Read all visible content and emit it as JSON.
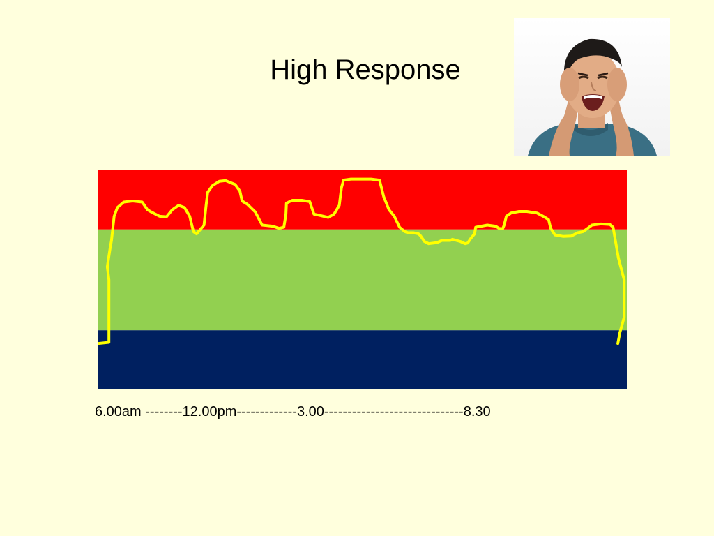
{
  "title": "High Response",
  "time_axis_label": "6.00am --------12.00pm-------------3.00------------------------------8.30",
  "photo": {
    "icon": "boy-covering-ears-photo"
  },
  "colors": {
    "background": "#FFFFDD",
    "band_high": "#FF0000",
    "band_middle": "#92D050",
    "band_low": "#002060",
    "trace": "#FFFF00"
  },
  "chart_data": {
    "type": "line",
    "title": "High Response",
    "xlabel": "6.00am --------12.00pm-------------3.00------------------------------8.30",
    "ylabel": "",
    "grid": false,
    "xlim": [
      0,
      100
    ],
    "ylim": [
      0,
      100
    ],
    "bands": [
      {
        "from": 73,
        "to": 100,
        "color": "#FF0000"
      },
      {
        "from": 27,
        "to": 73,
        "color": "#92D050"
      },
      {
        "from": 0,
        "to": 27,
        "color": "#002060"
      }
    ],
    "series": [
      {
        "color": "#FFFF00",
        "points": [
          [
            0,
            21
          ],
          [
            2,
            21.5
          ],
          [
            2,
            50
          ],
          [
            1.7,
            56
          ],
          [
            2.2,
            64
          ],
          [
            2.5,
            68
          ],
          [
            3,
            79
          ],
          [
            3.6,
            83
          ],
          [
            4.8,
            85.5
          ],
          [
            6.5,
            86
          ],
          [
            8.3,
            85.5
          ],
          [
            9.3,
            82
          ],
          [
            10,
            81
          ],
          [
            11.6,
            79
          ],
          [
            12.9,
            78.8
          ],
          [
            14,
            82
          ],
          [
            15.2,
            84
          ],
          [
            16.3,
            83
          ],
          [
            17.3,
            79
          ],
          [
            18,
            72
          ],
          [
            18.6,
            71
          ],
          [
            19.3,
            73
          ],
          [
            20,
            75
          ],
          [
            20.4,
            84
          ],
          [
            20.7,
            90
          ],
          [
            21.6,
            93
          ],
          [
            22.9,
            95
          ],
          [
            24.1,
            95.3
          ],
          [
            25.9,
            93.5
          ],
          [
            26.8,
            90.5
          ],
          [
            27.2,
            86
          ],
          [
            28.2,
            84.5
          ],
          [
            29.7,
            81
          ],
          [
            31,
            75
          ],
          [
            33,
            74.5
          ],
          [
            34.2,
            73.5
          ],
          [
            35.1,
            74
          ],
          [
            35.5,
            80
          ],
          [
            35.6,
            85
          ],
          [
            36.7,
            86.3
          ],
          [
            38.5,
            86.3
          ],
          [
            40,
            85.7
          ],
          [
            40.8,
            80
          ],
          [
            41.8,
            79.5
          ],
          [
            43.5,
            78.5
          ],
          [
            44.6,
            80
          ],
          [
            45.6,
            84
          ],
          [
            46,
            92
          ],
          [
            46.4,
            95.5
          ],
          [
            47.8,
            96
          ],
          [
            51.6,
            96
          ],
          [
            53.2,
            95.5
          ],
          [
            54,
            88
          ],
          [
            55,
            82
          ],
          [
            56,
            79
          ],
          [
            57,
            74
          ],
          [
            58,
            72
          ],
          [
            58.6,
            71.5
          ],
          [
            59.6,
            71.5
          ],
          [
            60.6,
            71
          ],
          [
            61,
            70
          ],
          [
            61.7,
            67.5
          ],
          [
            62.5,
            66.5
          ],
          [
            64.1,
            67
          ],
          [
            65,
            68
          ],
          [
            66.6,
            68
          ],
          [
            67,
            68.5
          ],
          [
            68.5,
            67.5
          ],
          [
            69.4,
            66.5
          ],
          [
            69.9,
            66.8
          ],
          [
            70.5,
            69
          ],
          [
            71.2,
            71
          ],
          [
            71.4,
            74
          ],
          [
            73.6,
            75
          ],
          [
            75.2,
            74.5
          ],
          [
            75.8,
            73.5
          ],
          [
            76.5,
            73.3
          ],
          [
            76.8,
            75
          ],
          [
            77.2,
            79
          ],
          [
            78.1,
            80.5
          ],
          [
            79.6,
            81.2
          ],
          [
            81.1,
            81.2
          ],
          [
            83,
            80.5
          ],
          [
            84.4,
            78.7
          ],
          [
            85.2,
            77.5
          ],
          [
            85.6,
            73.5
          ],
          [
            86.4,
            70.5
          ],
          [
            88,
            69.8
          ],
          [
            89.5,
            70
          ],
          [
            90.7,
            71.5
          ],
          [
            91.7,
            72
          ],
          [
            92.3,
            73
          ],
          [
            93.4,
            75
          ],
          [
            95.1,
            75.5
          ],
          [
            96.8,
            75.3
          ],
          [
            97.4,
            74
          ],
          [
            98.4,
            60
          ],
          [
            99.5,
            50
          ],
          [
            99.5,
            33
          ],
          [
            98.7,
            26
          ],
          [
            98.3,
            21
          ]
        ]
      }
    ]
  }
}
